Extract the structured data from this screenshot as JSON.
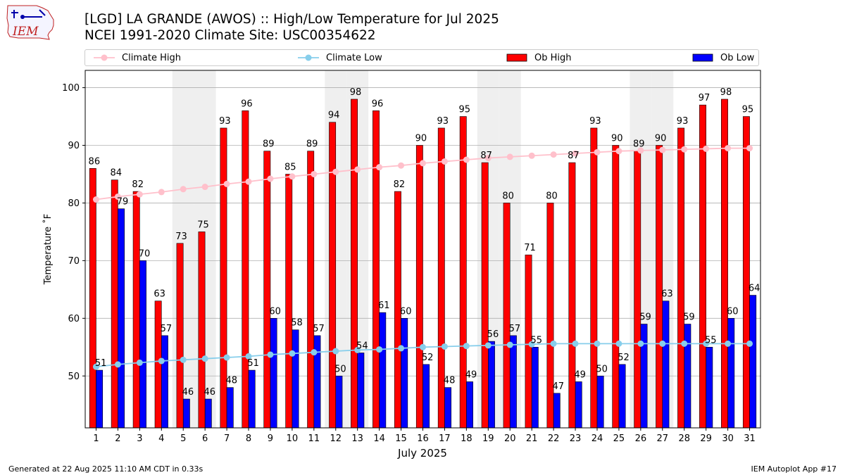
{
  "logo": {
    "text": "IEM"
  },
  "header": {
    "title": "[LGD] LA GRANDE (AWOS) :: High/Low Temperature for Jul 2025",
    "subtitle": "NCEI 1991-2020 Climate Site: USC00354622"
  },
  "footer": {
    "generated": "Generated at 22 Aug 2025 11:10 AM CDT in 0.33s",
    "app": "IEM Autoplot App #17"
  },
  "colors": {
    "ob_high": "#ff0000",
    "ob_low": "#0000ff",
    "climate_high": "#ffc0cb",
    "climate_low": "#87ceeb",
    "weekend_shade": "#efefef",
    "grid": "#b0b0b0"
  },
  "chart_data": {
    "type": "bar",
    "xlabel": "July 2025",
    "ylabel": "Temperature ˚F",
    "ylim": [
      41,
      103
    ],
    "yticks": [
      50,
      60,
      70,
      80,
      90,
      100
    ],
    "grid": "horizontal",
    "legend_position": "top",
    "categories": [
      "1",
      "2",
      "3",
      "4",
      "5",
      "6",
      "7",
      "8",
      "9",
      "10",
      "11",
      "12",
      "13",
      "14",
      "15",
      "16",
      "17",
      "18",
      "19",
      "20",
      "21",
      "22",
      "23",
      "24",
      "25",
      "26",
      "27",
      "28",
      "29",
      "30",
      "31"
    ],
    "shaded_days": [
      "5",
      "6",
      "12",
      "13",
      "19",
      "20",
      "26",
      "27"
    ],
    "series": [
      {
        "name": "Climate High",
        "kind": "line",
        "values": [
          80.6,
          81.1,
          81.5,
          81.9,
          82.4,
          82.8,
          83.3,
          83.7,
          84.2,
          84.6,
          85.0,
          85.4,
          85.8,
          86.2,
          86.5,
          86.9,
          87.2,
          87.5,
          87.8,
          88.0,
          88.2,
          88.4,
          88.6,
          88.8,
          89.0,
          89.1,
          89.2,
          89.3,
          89.4,
          89.5,
          89.5
        ]
      },
      {
        "name": "Climate Low",
        "kind": "line",
        "values": [
          51.6,
          52.0,
          52.3,
          52.6,
          52.8,
          53.0,
          53.2,
          53.4,
          53.7,
          53.9,
          54.1,
          54.3,
          54.5,
          54.6,
          54.8,
          55.0,
          55.1,
          55.2,
          55.3,
          55.4,
          55.5,
          55.6,
          55.6,
          55.6,
          55.6,
          55.6,
          55.6,
          55.6,
          55.6,
          55.6,
          55.6
        ]
      },
      {
        "name": "Ob High",
        "kind": "bar",
        "values": [
          86,
          84,
          82,
          63,
          73,
          75,
          93,
          96,
          89,
          85,
          89,
          94,
          98,
          96,
          82,
          90,
          93,
          95,
          87,
          80,
          71,
          80,
          87,
          93,
          90,
          89,
          90,
          93,
          97,
          98,
          95
        ]
      },
      {
        "name": "Ob Low",
        "kind": "bar",
        "values": [
          51,
          79,
          70,
          57,
          46,
          46,
          48,
          51,
          60,
          58,
          57,
          50,
          54,
          61,
          60,
          52,
          48,
          49,
          56,
          57,
          55,
          47,
          49,
          50,
          52,
          59,
          63,
          59,
          55,
          60,
          64
        ]
      }
    ]
  }
}
